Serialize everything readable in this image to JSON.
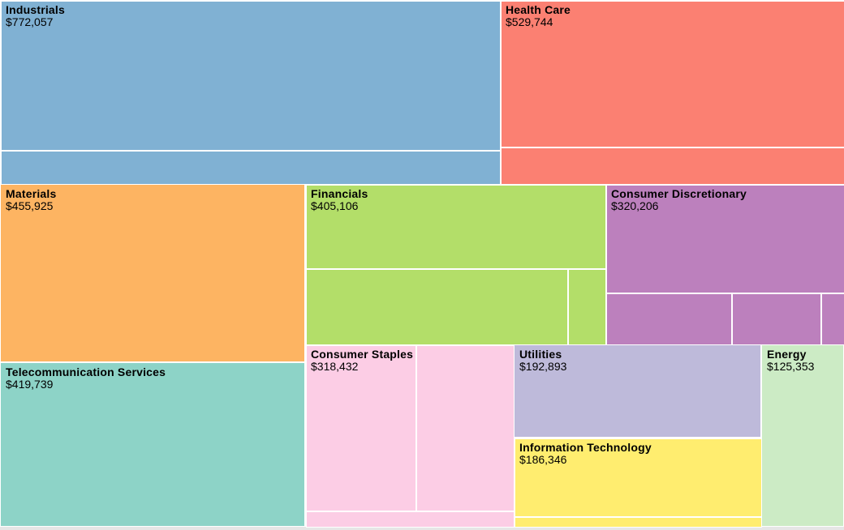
{
  "chart_data": {
    "type": "treemap",
    "sectors": [
      {
        "name": "Industrials",
        "value": 772057,
        "value_label": "$772,057",
        "color": "#80b1d3"
      },
      {
        "name": "Health Care",
        "value": 529744,
        "value_label": "$529,744",
        "color": "#fb8072"
      },
      {
        "name": "Materials",
        "value": 455925,
        "value_label": "$455,925",
        "color": "#fdb462"
      },
      {
        "name": "Financials",
        "value": 405106,
        "value_label": "$405,106",
        "color": "#b3de69"
      },
      {
        "name": "Consumer Discretionary",
        "value": 320206,
        "value_label": "$320,206",
        "color": "#bc80bd"
      },
      {
        "name": "Telecommunication Services",
        "value": 419739,
        "value_label": "$419,739",
        "color": "#8dd3c7"
      },
      {
        "name": "Consumer Staples",
        "value": 318432,
        "value_label": "$318,432",
        "color": "#fccde5"
      },
      {
        "name": "Utilities",
        "value": 192893,
        "value_label": "$192,893",
        "color": "#bebada"
      },
      {
        "name": "Information Technology",
        "value": 186346,
        "value_label": "$186,346",
        "color": "#ffed6f"
      },
      {
        "name": "Energy",
        "value": 125353,
        "value_label": "$125,353",
        "color": "#ccebc5"
      }
    ]
  }
}
